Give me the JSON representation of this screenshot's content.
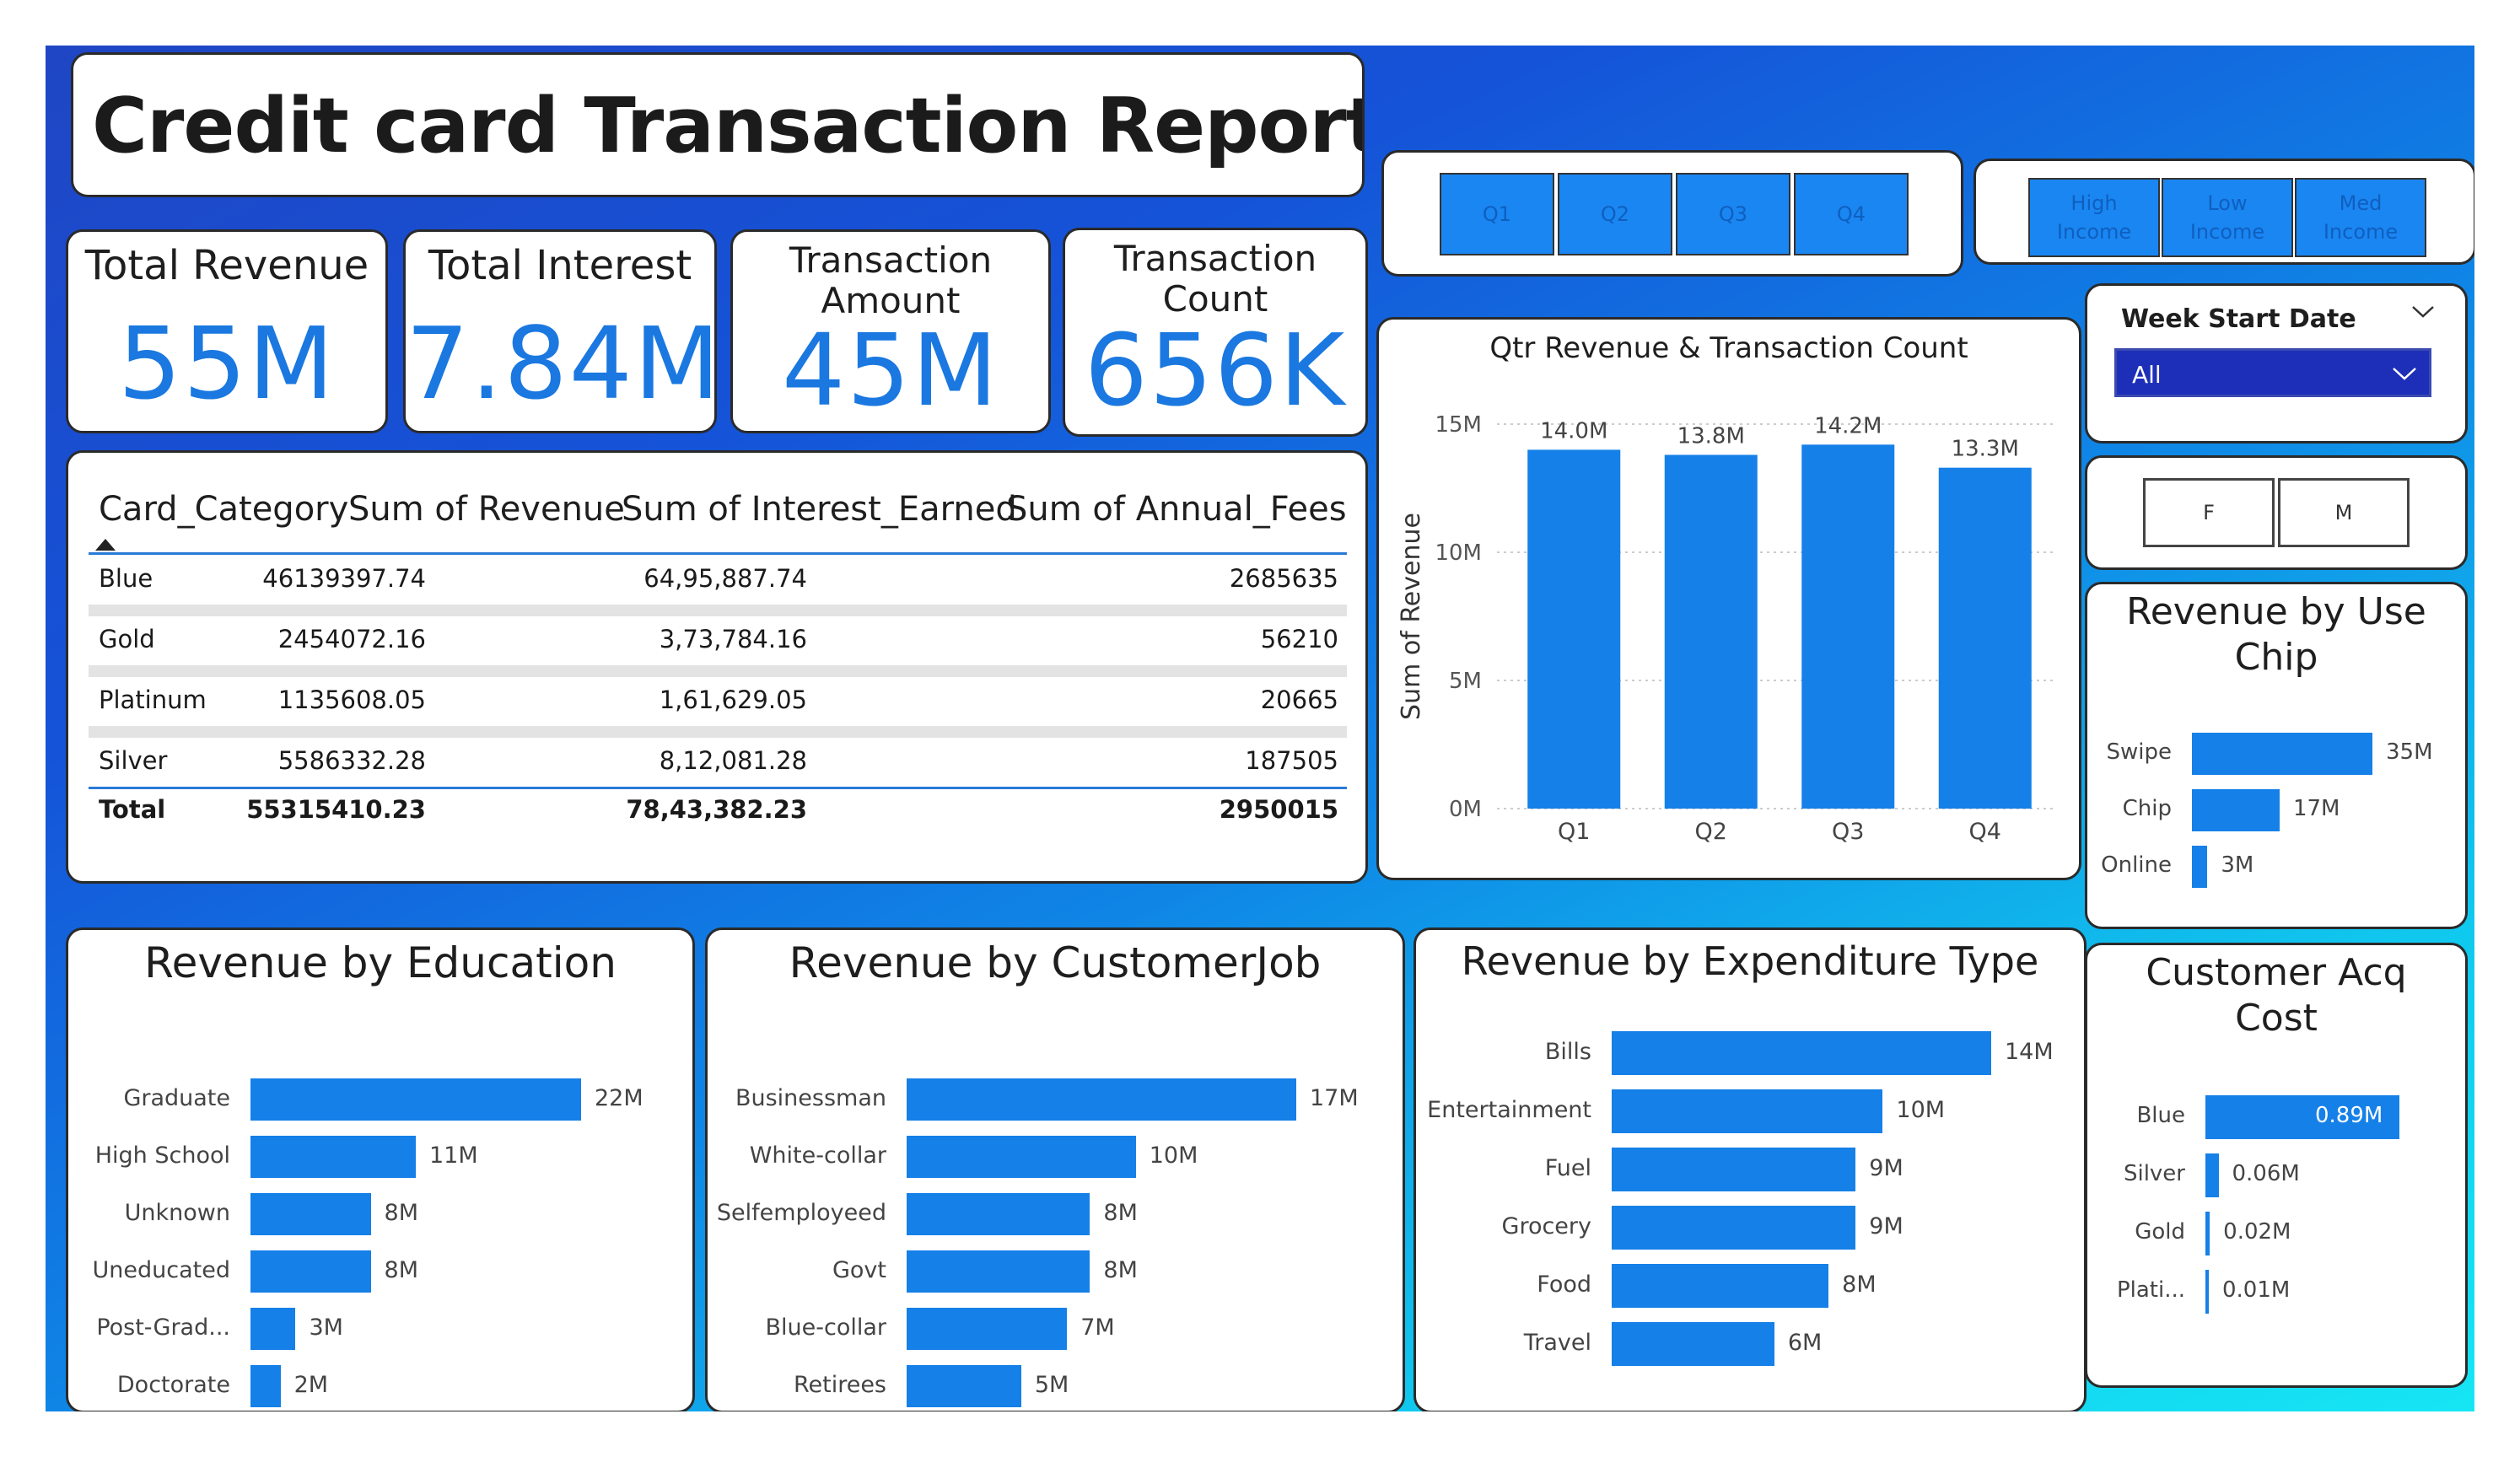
{
  "header": {
    "title": "Credit card Transaction Report"
  },
  "kpis": {
    "revenue": {
      "label": "Total Revenue",
      "value": "55M"
    },
    "interest": {
      "label": "Total Interest",
      "value": "7.84M"
    },
    "amount": {
      "label_line1": "Transaction",
      "label_line2": "Amount",
      "value": "45M"
    },
    "count": {
      "label_line1": "Transaction",
      "label_line2": "Count",
      "value": "656K"
    }
  },
  "table": {
    "headers": [
      "Card_Category",
      "Sum of Revenue",
      "Sum of Interest_Earned",
      "Sum of Annual_Fees"
    ],
    "rows": [
      [
        "Blue",
        "46139397.74",
        "64,95,887.74",
        "2685635"
      ],
      [
        "Gold",
        "2454072.16",
        "3,73,784.16",
        "56210"
      ],
      [
        "Platinum",
        "1135608.05",
        "1,61,629.05",
        "20665"
      ],
      [
        "Silver",
        "5586332.28",
        "8,12,081.28",
        "187505"
      ]
    ],
    "total": [
      "Total",
      "55315410.23",
      "78,43,382.23",
      "2950015"
    ]
  },
  "slicers": {
    "quarters": [
      "Q1",
      "Q2",
      "Q3",
      "Q4"
    ],
    "income": [
      {
        "line1": "High",
        "line2": "Income"
      },
      {
        "line1": "Low",
        "line2": "Income"
      },
      {
        "line1": "Med",
        "line2": "Income"
      }
    ],
    "week": {
      "label": "Week Start Date",
      "value": "All",
      "chevron_icon": "chevron-down-icon"
    },
    "gender": [
      "F",
      "M"
    ]
  },
  "colors": {
    "bar": "#1580e8",
    "kpi_value": "#1a78e0",
    "accent_dark": "#1d2fb8"
  },
  "chart_data": [
    {
      "id": "qtr",
      "type": "bar",
      "title": "Qtr Revenue & Transaction Count",
      "ylabel": "Sum of Revenue",
      "categories": [
        "Q1",
        "Q2",
        "Q3",
        "Q4"
      ],
      "values": [
        14.0,
        13.8,
        14.2,
        13.3
      ],
      "data_labels": [
        "14.0M",
        "13.8M",
        "14.2M",
        "13.3M"
      ],
      "yticks": [
        "0M",
        "5M",
        "10M",
        "15M"
      ],
      "ylim": [
        0,
        15
      ]
    },
    {
      "id": "usechip",
      "type": "bar",
      "orientation": "horizontal",
      "title_line1": "Revenue by Use",
      "title_line2": "Chip",
      "categories": [
        "Swipe",
        "Chip",
        "Online"
      ],
      "values": [
        35,
        17,
        3
      ],
      "data_labels": [
        "35M",
        "17M",
        "3M"
      ]
    },
    {
      "id": "custacq",
      "type": "bar",
      "orientation": "horizontal",
      "title_line1": "Customer Acq",
      "title_line2": "Cost",
      "categories": [
        "Blue",
        "Silver",
        "Gold",
        "Plati..."
      ],
      "values": [
        0.89,
        0.06,
        0.02,
        0.01
      ],
      "data_labels": [
        "0.89M",
        "0.06M",
        "0.02M",
        "0.01M"
      ]
    },
    {
      "id": "edu",
      "type": "bar",
      "orientation": "horizontal",
      "title": "Revenue by Education",
      "categories": [
        "Graduate",
        "High School",
        "Unknown",
        "Uneducated",
        "Post-Grad...",
        "Doctorate"
      ],
      "values": [
        22,
        11,
        8,
        8,
        3,
        2
      ],
      "data_labels": [
        "22M",
        "11M",
        "8M",
        "8M",
        "3M",
        "2M"
      ]
    },
    {
      "id": "job",
      "type": "bar",
      "orientation": "horizontal",
      "title": "Revenue by CustomerJob",
      "categories": [
        "Businessman",
        "White-collar",
        "Selfemployeed",
        "Govt",
        "Blue-collar",
        "Retirees"
      ],
      "values": [
        17,
        10,
        8,
        8,
        7,
        5
      ],
      "data_labels": [
        "17M",
        "10M",
        "8M",
        "8M",
        "7M",
        "5M"
      ]
    },
    {
      "id": "exp",
      "type": "bar",
      "orientation": "horizontal",
      "title": "Revenue by Expenditure Type",
      "categories": [
        "Bills",
        "Entertainment",
        "Fuel",
        "Grocery",
        "Food",
        "Travel"
      ],
      "values": [
        14,
        10,
        9,
        9,
        8,
        6
      ],
      "data_labels": [
        "14M",
        "10M",
        "9M",
        "9M",
        "8M",
        "6M"
      ]
    }
  ]
}
